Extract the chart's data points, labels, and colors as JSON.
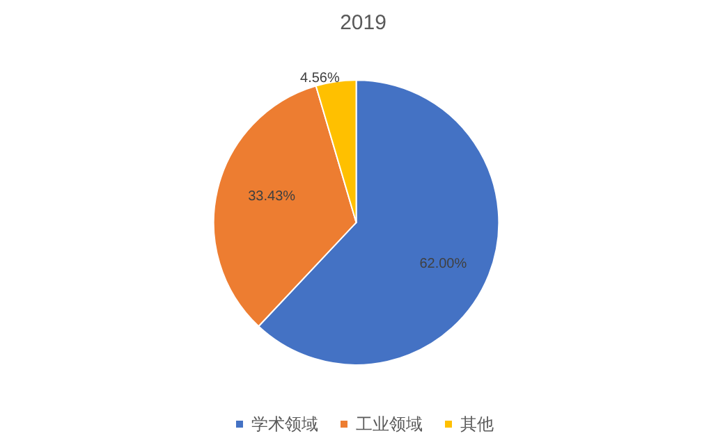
{
  "chart_data": {
    "type": "pie",
    "title": "2019",
    "categories": [
      "学术领域",
      "工业领域",
      "其他"
    ],
    "values": [
      62.0,
      33.43,
      4.56
    ],
    "colors": [
      "#4472c4",
      "#ed7d31",
      "#ffc000"
    ],
    "value_labels": [
      "62.00%",
      "33.43%",
      "4.56%"
    ],
    "legend": "bottom"
  }
}
